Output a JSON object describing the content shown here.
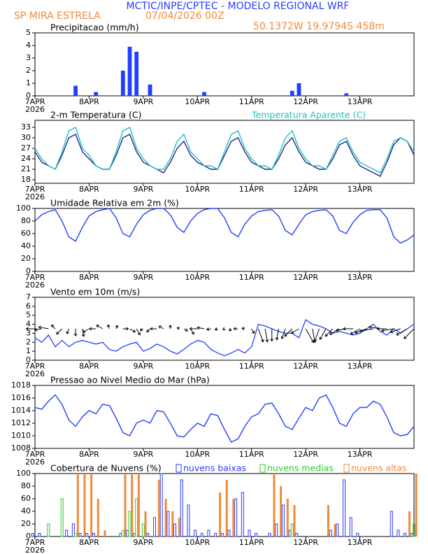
{
  "header": {
    "title": "MCTIC/INPE/CPTEC - MODELO REGIONAL WRF",
    "location": "SP MIRA ESTRELA",
    "datetime": "07/04/2026 00Z",
    "coordinates": "50.1372W 19.9794S 458m"
  },
  "chart_data": [
    {
      "type": "bar",
      "title": "Precipitacao (mm/h)",
      "year_label": "2026",
      "color": "#2040ff",
      "xlim": [
        0,
        168
      ],
      "xticks": [
        {
          "value": 0,
          "label": "7APR"
        },
        {
          "value": 24,
          "label": "8APR"
        },
        {
          "value": 48,
          "label": "9APR"
        },
        {
          "value": 72,
          "label": "10APR"
        },
        {
          "value": 96,
          "label": "11APR"
        },
        {
          "value": 120,
          "label": "12APR"
        },
        {
          "value": 144,
          "label": "13APR"
        }
      ],
      "x": [
        0,
        3,
        6,
        9,
        12,
        15,
        18,
        21,
        24,
        27,
        30,
        33,
        36,
        39,
        42,
        45,
        48,
        51,
        54,
        57,
        60,
        63,
        66,
        69,
        72,
        75,
        78,
        81,
        84,
        87,
        90,
        93,
        96,
        99,
        102,
        105,
        108,
        111,
        114,
        117,
        120,
        123,
        126,
        129,
        132,
        135,
        138,
        141,
        144,
        147,
        150,
        153,
        156,
        159,
        162,
        165,
        168
      ],
      "values": [
        0,
        0,
        0,
        0,
        0,
        0,
        0.8,
        0,
        0,
        0.3,
        0,
        0,
        0,
        2.0,
        3.9,
        3.5,
        0,
        0.9,
        0,
        0,
        0,
        0,
        0,
        0,
        0,
        0.3,
        0,
        0,
        0,
        0,
        0,
        0,
        0,
        0,
        0,
        0,
        0,
        0,
        0.4,
        1.0,
        0,
        0,
        0,
        0,
        0,
        0,
        0.2,
        0,
        0,
        0,
        0,
        0,
        0,
        0,
        0,
        0,
        0
      ],
      "ylim": [
        0,
        5
      ],
      "yticks": [
        0,
        1,
        2,
        3,
        4,
        5
      ]
    },
    {
      "type": "line",
      "year_label": "2026",
      "xlim": [
        0,
        168
      ],
      "xticks": [
        {
          "value": 0,
          "label": "7APR"
        },
        {
          "value": 24,
          "label": "8APR"
        },
        {
          "value": 48,
          "label": "9APR"
        },
        {
          "value": 72,
          "label": "10APR"
        },
        {
          "value": 96,
          "label": "11APR"
        },
        {
          "value": 120,
          "label": "12APR"
        },
        {
          "value": 144,
          "label": "13APR"
        }
      ],
      "x": [
        0,
        3,
        6,
        9,
        12,
        15,
        18,
        21,
        24,
        27,
        30,
        33,
        36,
        39,
        42,
        45,
        48,
        51,
        54,
        57,
        60,
        63,
        66,
        69,
        72,
        75,
        78,
        81,
        84,
        87,
        90,
        93,
        96,
        99,
        102,
        105,
        108,
        111,
        114,
        117,
        120,
        123,
        126,
        129,
        132,
        135,
        138,
        141,
        144,
        147,
        150,
        153,
        156,
        159,
        162,
        165,
        168
      ],
      "series": [
        {
          "name": "2-m Temperatura (C)",
          "color": "#24248c",
          "values": [
            26,
            23,
            22,
            21,
            25,
            30,
            31,
            26,
            24,
            22,
            21,
            21,
            25,
            30,
            31,
            26,
            23,
            22,
            21,
            20,
            23,
            27,
            29,
            25,
            23,
            22,
            21,
            21,
            25,
            29,
            30,
            26,
            23,
            22,
            21,
            21,
            24,
            28,
            30,
            26,
            23,
            22,
            21,
            21,
            24,
            28,
            29,
            25,
            22,
            21,
            20,
            19,
            23,
            28,
            30,
            29,
            25
          ]
        },
        {
          "name": "Temperatura Aparente (C)",
          "color": "#22c0c0",
          "values": [
            27,
            24,
            22,
            21,
            26,
            32,
            33,
            27,
            25,
            22,
            21,
            21,
            26,
            32,
            33,
            27,
            24,
            22,
            21,
            21,
            24,
            29,
            31,
            26,
            24,
            22,
            22,
            21,
            26,
            31,
            32,
            27,
            24,
            22,
            22,
            21,
            25,
            30,
            32,
            27,
            24,
            22,
            22,
            21,
            25,
            29,
            30,
            26,
            23,
            22,
            21,
            20,
            24,
            29,
            30,
            29,
            26
          ]
        }
      ],
      "ylim": [
        17,
        35
      ],
      "yticks": [
        18,
        21,
        24,
        27,
        30,
        33
      ]
    },
    {
      "type": "line",
      "title": "Umidade Relativa em 2m (%)",
      "year_label": "2026",
      "color": "#2040ff",
      "xlim": [
        0,
        168
      ],
      "xticks": [
        {
          "value": 0,
          "label": "7APR"
        },
        {
          "value": 24,
          "label": "8APR"
        },
        {
          "value": 48,
          "label": "9APR"
        },
        {
          "value": 72,
          "label": "10APR"
        },
        {
          "value": 96,
          "label": "11APR"
        },
        {
          "value": 120,
          "label": "12APR"
        },
        {
          "value": 144,
          "label": "13APR"
        }
      ],
      "x": [
        0,
        3,
        6,
        9,
        12,
        15,
        18,
        21,
        24,
        27,
        30,
        33,
        36,
        39,
        42,
        45,
        48,
        51,
        54,
        57,
        60,
        63,
        66,
        69,
        72,
        75,
        78,
        81,
        84,
        87,
        90,
        93,
        96,
        99,
        102,
        105,
        108,
        111,
        114,
        117,
        120,
        123,
        126,
        129,
        132,
        135,
        138,
        141,
        144,
        147,
        150,
        153,
        156,
        159,
        162,
        165,
        168
      ],
      "values": [
        80,
        90,
        95,
        98,
        80,
        55,
        48,
        70,
        88,
        95,
        98,
        100,
        85,
        60,
        55,
        75,
        90,
        97,
        100,
        100,
        90,
        70,
        62,
        80,
        92,
        98,
        100,
        100,
        85,
        62,
        55,
        75,
        88,
        95,
        97,
        98,
        88,
        65,
        58,
        75,
        90,
        95,
        97,
        98,
        88,
        65,
        60,
        78,
        90,
        97,
        98,
        98,
        85,
        55,
        45,
        50,
        58
      ],
      "ylim": [
        0,
        100
      ],
      "yticks": [
        0,
        20,
        40,
        60,
        80,
        100
      ]
    },
    {
      "type": "wind",
      "title": "Vento em 10m (m/s)",
      "year_label": "2026",
      "color": "#2040ff",
      "xlim": [
        0,
        168
      ],
      "xticks": [
        {
          "value": 0,
          "label": "7APR"
        },
        {
          "value": 24,
          "label": "8APR"
        },
        {
          "value": 48,
          "label": "9APR"
        },
        {
          "value": 72,
          "label": "10APR"
        },
        {
          "value": 96,
          "label": "11APR"
        },
        {
          "value": 120,
          "label": "12APR"
        },
        {
          "value": 144,
          "label": "13APR"
        }
      ],
      "x": [
        0,
        3,
        6,
        9,
        12,
        15,
        18,
        21,
        24,
        27,
        30,
        33,
        36,
        39,
        42,
        45,
        48,
        51,
        54,
        57,
        60,
        63,
        66,
        69,
        72,
        75,
        78,
        81,
        84,
        87,
        90,
        93,
        96,
        99,
        102,
        105,
        108,
        111,
        114,
        117,
        120,
        123,
        126,
        129,
        132,
        135,
        138,
        141,
        144,
        147,
        150,
        153,
        156,
        159,
        162,
        165,
        168
      ],
      "values": [
        2.5,
        2.0,
        2.8,
        1.5,
        2.2,
        1.5,
        2.0,
        2.2,
        2.0,
        1.8,
        2.0,
        1.2,
        1.0,
        1.5,
        1.8,
        2.0,
        1.0,
        1.3,
        1.8,
        1.5,
        1.0,
        0.7,
        1.2,
        1.8,
        2.2,
        2.0,
        1.2,
        0.8,
        0.5,
        0.8,
        1.2,
        0.8,
        1.5,
        4.0,
        3.8,
        3.5,
        3.2,
        3.0,
        3.0,
        2.5,
        4.5,
        4.0,
        3.8,
        3.5,
        3.0,
        3.2,
        3.0,
        2.8,
        3.0,
        3.5,
        4.0,
        3.2,
        2.8,
        3.5,
        3.0,
        3.5,
        4.0
      ],
      "direction": [
        90,
        80,
        100,
        135,
        45,
        20,
        0,
        350,
        60,
        90,
        120,
        160,
        200,
        270,
        300,
        330,
        60,
        45,
        90,
        120,
        180,
        240,
        300,
        330,
        90,
        100,
        80,
        70,
        60,
        45,
        90,
        100,
        330,
        340,
        350,
        0,
        10,
        20,
        45,
        60,
        330,
        350,
        20,
        30,
        45,
        60,
        80,
        90,
        60,
        70,
        80,
        100,
        90,
        80,
        70,
        60,
        45
      ],
      "ylim": [
        0,
        7
      ],
      "yticks": [
        0,
        1,
        2,
        3,
        4,
        5,
        6,
        7
      ]
    },
    {
      "type": "line",
      "title": "Pressao ao Nivel Medio do Mar (hPa)",
      "year_label": "2026",
      "color": "#2040ff",
      "xlim": [
        0,
        168
      ],
      "xticks": [
        {
          "value": 0,
          "label": "7APR"
        },
        {
          "value": 24,
          "label": "8APR"
        },
        {
          "value": 48,
          "label": "9APR"
        },
        {
          "value": 72,
          "label": "10APR"
        },
        {
          "value": 96,
          "label": "11APR"
        },
        {
          "value": 120,
          "label": "12APR"
        },
        {
          "value": 144,
          "label": "13APR"
        }
      ],
      "x": [
        0,
        3,
        6,
        9,
        12,
        15,
        18,
        21,
        24,
        27,
        30,
        33,
        36,
        39,
        42,
        45,
        48,
        51,
        54,
        57,
        60,
        63,
        66,
        69,
        72,
        75,
        78,
        81,
        84,
        87,
        90,
        93,
        96,
        99,
        102,
        105,
        108,
        111,
        114,
        117,
        120,
        123,
        126,
        129,
        132,
        135,
        138,
        141,
        144,
        147,
        150,
        153,
        156,
        159,
        162,
        165,
        168
      ],
      "values": [
        1014.5,
        1014.2,
        1015.5,
        1016.5,
        1015.0,
        1012.5,
        1011.5,
        1013.0,
        1014.0,
        1013.5,
        1015.0,
        1014.8,
        1012.8,
        1010.5,
        1010.0,
        1012.0,
        1012.5,
        1012.0,
        1014.0,
        1013.8,
        1012.0,
        1010.0,
        1009.8,
        1011.0,
        1012.0,
        1011.5,
        1013.5,
        1013.2,
        1011.0,
        1009.0,
        1009.5,
        1011.5,
        1013.0,
        1013.5,
        1015.0,
        1015.2,
        1013.5,
        1011.5,
        1011.0,
        1012.8,
        1014.5,
        1014.0,
        1016.0,
        1016.5,
        1014.5,
        1012.0,
        1011.5,
        1013.5,
        1014.5,
        1014.5,
        1015.5,
        1015.0,
        1013.0,
        1010.5,
        1010.0,
        1010.2,
        1011.5
      ],
      "ylim": [
        1008,
        1018
      ],
      "yticks": [
        1008,
        1010,
        1012,
        1014,
        1016,
        1018
      ]
    },
    {
      "type": "bar",
      "title": "Cobertura de Nuvens (%)",
      "year_label": "2026",
      "xlim": [
        0,
        168
      ],
      "xticks": [
        {
          "value": 0,
          "label": "7APR"
        },
        {
          "value": 24,
          "label": "8APR"
        },
        {
          "value": 48,
          "label": "9APR"
        },
        {
          "value": 72,
          "label": "10APR"
        },
        {
          "value": 96,
          "label": "11APR"
        },
        {
          "value": 120,
          "label": "12APR"
        },
        {
          "value": 144,
          "label": "13APR"
        }
      ],
      "x": [
        0,
        3,
        6,
        9,
        12,
        15,
        18,
        21,
        24,
        27,
        30,
        33,
        36,
        39,
        42,
        45,
        48,
        51,
        54,
        57,
        60,
        63,
        66,
        69,
        72,
        75,
        78,
        81,
        84,
        87,
        90,
        93,
        96,
        99,
        102,
        105,
        108,
        111,
        114,
        117,
        120,
        123,
        126,
        129,
        132,
        135,
        138,
        141,
        144,
        147,
        150,
        153,
        156,
        159,
        162,
        165,
        168
      ],
      "series": [
        {
          "name": "nuvens baixas",
          "color": "#2a3cff",
          "filled": false,
          "values": [
            5,
            5,
            0,
            0,
            0,
            10,
            20,
            5,
            5,
            5,
            0,
            0,
            0,
            5,
            10,
            5,
            0,
            5,
            30,
            100,
            40,
            20,
            90,
            50,
            10,
            5,
            10,
            5,
            5,
            10,
            60,
            70,
            10,
            5,
            0,
            5,
            20,
            50,
            10,
            5,
            0,
            0,
            0,
            0,
            10,
            20,
            90,
            30,
            5,
            0,
            0,
            0,
            0,
            40,
            10,
            5,
            5
          ]
        },
        {
          "name": "nuvens medias",
          "color": "#2ecc2e",
          "filled": false,
          "values": [
            0,
            0,
            20,
            0,
            60,
            0,
            5,
            0,
            0,
            0,
            0,
            0,
            0,
            10,
            40,
            60,
            20,
            0,
            0,
            0,
            0,
            0,
            0,
            0,
            0,
            0,
            0,
            0,
            0,
            0,
            0,
            0,
            0,
            0,
            0,
            0,
            0,
            0,
            20,
            0,
            0,
            0,
            0,
            0,
            0,
            0,
            0,
            0,
            0,
            0,
            0,
            0,
            0,
            0,
            0,
            0,
            20
          ]
        },
        {
          "name": "nuvens altas",
          "color": "#f08a3c",
          "filled": true,
          "values": [
            0,
            0,
            0,
            0,
            0,
            0,
            100,
            100,
            100,
            60,
            10,
            0,
            0,
            100,
            100,
            100,
            40,
            0,
            90,
            60,
            40,
            30,
            0,
            0,
            0,
            0,
            0,
            70,
            90,
            60,
            0,
            0,
            0,
            0,
            0,
            100,
            80,
            60,
            50,
            0,
            0,
            0,
            0,
            50,
            20,
            0,
            0,
            0,
            0,
            0,
            0,
            0,
            0,
            0,
            0,
            40,
            100
          ]
        }
      ],
      "ylim": [
        0,
        100
      ],
      "yticks": [
        0,
        20,
        40,
        60,
        80,
        100
      ]
    }
  ]
}
